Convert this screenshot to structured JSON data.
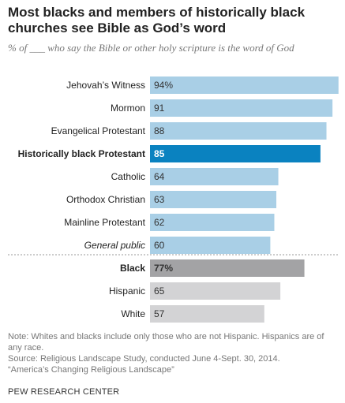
{
  "header": {
    "title": "Most blacks and members of historically black churches see Bible as God’s word",
    "subtitle": "% of ___ who say the Bible or other holy scripture is the word of God"
  },
  "colors": {
    "default_bar": "#a9cfe6",
    "highlight_bar": "#0a82c0",
    "race_bar": "#d3d3d5",
    "race_highlight_bar": "#a3a3a5",
    "divider": "#999999"
  },
  "chart_data": {
    "type": "bar",
    "orientation": "horizontal",
    "xlim": [
      0,
      100
    ],
    "groups": [
      {
        "categories": [
          "Jehovah’s Witness",
          "Mormon",
          "Evangelical Protestant",
          "Historically black Protestant",
          "Catholic",
          "Orthodox Christian",
          "Mainline Protestant",
          "General public"
        ],
        "values": [
          94,
          91,
          88,
          85,
          64,
          63,
          62,
          60
        ],
        "value_labels": [
          "94%",
          "91",
          "88",
          "85",
          "64",
          "63",
          "62",
          "60"
        ],
        "highlight": [
          false,
          false,
          false,
          true,
          false,
          false,
          false,
          false
        ],
        "italic": [
          false,
          false,
          false,
          false,
          false,
          false,
          false,
          true
        ]
      },
      {
        "categories": [
          "Black",
          "Hispanic",
          "White"
        ],
        "values": [
          77,
          65,
          57
        ],
        "value_labels": [
          "77%",
          "65",
          "57"
        ],
        "highlight": [
          true,
          false,
          false
        ],
        "italic": [
          false,
          false,
          false
        ]
      }
    ]
  },
  "footer": {
    "note": "Note: Whites and blacks include only those who are not Hispanic. Hispanics are of any race.",
    "source": "Source: Religious Landscape Study, conducted June 4-Sept. 30, 2014.",
    "report": "“America’s Changing Religious Landscape”",
    "credit": "PEW RESEARCH CENTER"
  }
}
